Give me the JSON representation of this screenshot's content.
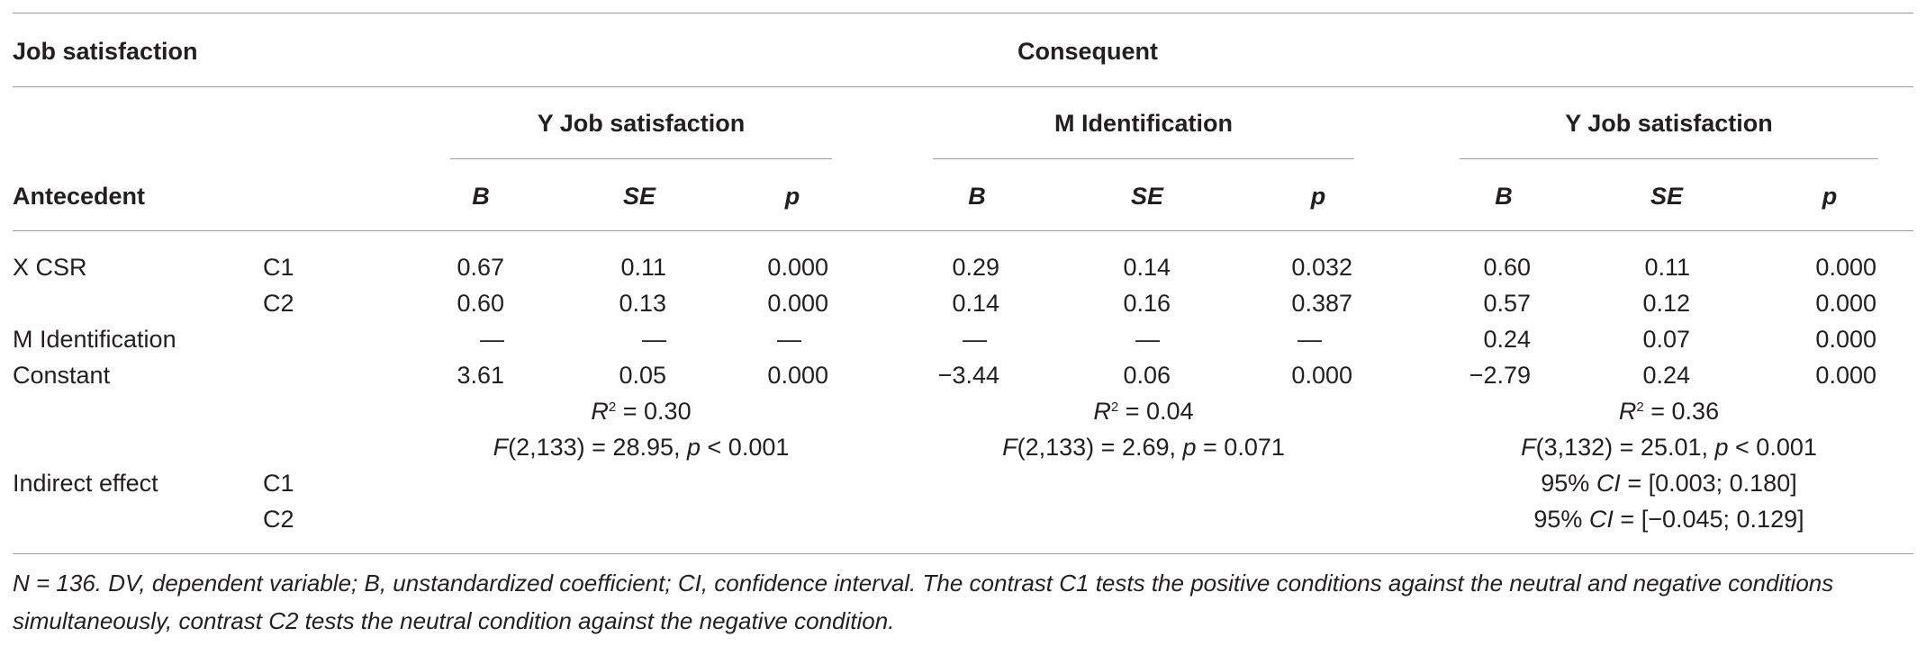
{
  "header": {
    "corner": "Job satisfaction",
    "consequent": "Consequent",
    "antecedent": "Antecedent",
    "groups": [
      "Y Job satisfaction",
      "M Identification",
      "Y Job satisfaction"
    ],
    "stat_b": "B",
    "stat_se": "SE",
    "stat_p": "p"
  },
  "rows": {
    "xcsr_label": "X CSR",
    "c1": "C1",
    "c2": "C2",
    "xcsr_c1": [
      "0.67",
      "0.11",
      "0.000",
      "0.29",
      "0.14",
      "0.032",
      "0.60",
      "0.11",
      "0.000"
    ],
    "xcsr_c2": [
      "0.60",
      "0.13",
      "0.000",
      "0.14",
      "0.16",
      "0.387",
      "0.57",
      "0.12",
      "0.000"
    ],
    "mident_label": "M Identification",
    "mident": [
      "—",
      "—",
      "—",
      "—",
      "—",
      "—",
      "0.24",
      "0.07",
      "0.000"
    ],
    "constant_label": "Constant",
    "constant": [
      "3.61",
      "0.05",
      "0.000",
      "−3.44",
      "0.06",
      "0.000",
      "−2.79",
      "0.24",
      "0.000"
    ],
    "r2_symbol": "R",
    "r2_exp": "2",
    "r2_values": [
      "= 0.30",
      "= 0.04",
      "= 0.36"
    ],
    "f_symbol": "F",
    "f_args": [
      "(2,133) = 28.95, ",
      "(2,133) = 2.69, ",
      "(3,132) = 25.01, "
    ],
    "p_symbol": "p",
    "p_values": [
      " < 0.001",
      " = 0.071",
      " < 0.001"
    ],
    "indirect_label": "Indirect effect",
    "ci_prefix": "95% ",
    "ci_symbol": "CI",
    "ci_c1": " = [0.003; 0.180]",
    "ci_c2": " = [−0.045; 0.129]"
  },
  "footnote": "N = 136. DV, dependent variable; B, unstandardized coefficient; CI, confidence interval. The contrast C1 tests the positive conditions against the neutral and negative conditions simultaneously, contrast C2 tests the neutral condition against the negative condition."
}
